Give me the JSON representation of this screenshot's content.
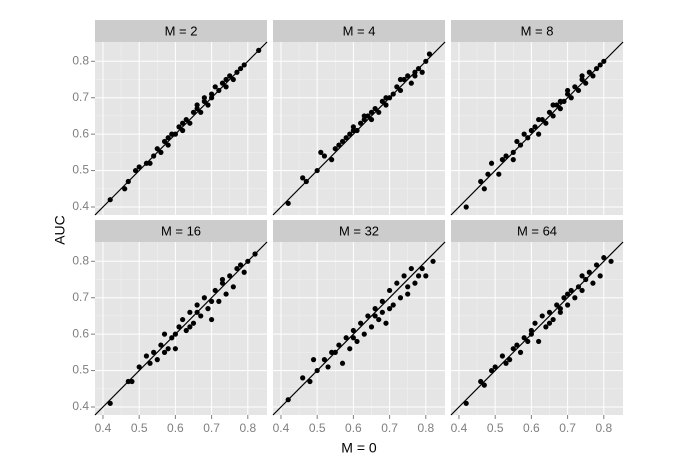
{
  "chart_data": {
    "type": "scatter",
    "xlabel": "M = 0",
    "ylabel": "AUC",
    "xlim": [
      0.378,
      0.853
    ],
    "ylim": [
      0.378,
      0.853
    ],
    "xticks": [
      0.4,
      0.5,
      0.6,
      0.7,
      0.8
    ],
    "yticks": [
      0.4,
      0.5,
      0.6,
      0.7,
      0.8
    ],
    "grid": true,
    "color": "#000000",
    "panels": [
      {
        "label": "M = 2",
        "x": [
          0.42,
          0.46,
          0.47,
          0.49,
          0.5,
          0.52,
          0.53,
          0.54,
          0.55,
          0.56,
          0.57,
          0.58,
          0.59,
          0.6,
          0.61,
          0.62,
          0.63,
          0.64,
          0.65,
          0.66,
          0.67,
          0.68,
          0.69,
          0.7,
          0.71,
          0.72,
          0.73,
          0.74,
          0.75,
          0.76,
          0.77,
          0.78,
          0.79,
          0.66,
          0.7,
          0.62,
          0.58,
          0.74,
          0.68,
          0.83
        ],
        "y": [
          0.42,
          0.45,
          0.47,
          0.5,
          0.51,
          0.52,
          0.52,
          0.54,
          0.56,
          0.55,
          0.58,
          0.57,
          0.6,
          0.6,
          0.62,
          0.61,
          0.64,
          0.63,
          0.66,
          0.67,
          0.66,
          0.69,
          0.68,
          0.71,
          0.73,
          0.72,
          0.74,
          0.73,
          0.76,
          0.75,
          0.77,
          0.78,
          0.79,
          0.68,
          0.7,
          0.63,
          0.59,
          0.75,
          0.7,
          0.83
        ]
      },
      {
        "label": "M = 4",
        "x": [
          0.46,
          0.47,
          0.5,
          0.51,
          0.52,
          0.54,
          0.55,
          0.56,
          0.57,
          0.58,
          0.59,
          0.6,
          0.61,
          0.62,
          0.63,
          0.64,
          0.65,
          0.66,
          0.67,
          0.68,
          0.69,
          0.7,
          0.71,
          0.72,
          0.73,
          0.74,
          0.75,
          0.76,
          0.77,
          0.78,
          0.79,
          0.8,
          0.81,
          0.65,
          0.69,
          0.6,
          0.73,
          0.77,
          0.63,
          0.42
        ],
        "y": [
          0.48,
          0.47,
          0.5,
          0.55,
          0.54,
          0.53,
          0.56,
          0.57,
          0.58,
          0.59,
          0.6,
          0.61,
          0.61,
          0.63,
          0.64,
          0.65,
          0.64,
          0.67,
          0.66,
          0.69,
          0.68,
          0.7,
          0.71,
          0.73,
          0.72,
          0.75,
          0.76,
          0.74,
          0.77,
          0.78,
          0.77,
          0.8,
          0.82,
          0.66,
          0.7,
          0.62,
          0.75,
          0.76,
          0.65,
          0.41
        ]
      },
      {
        "label": "M = 8",
        "x": [
          0.42,
          0.46,
          0.47,
          0.49,
          0.51,
          0.52,
          0.53,
          0.55,
          0.56,
          0.57,
          0.58,
          0.59,
          0.6,
          0.61,
          0.62,
          0.63,
          0.64,
          0.65,
          0.66,
          0.67,
          0.68,
          0.69,
          0.7,
          0.71,
          0.72,
          0.73,
          0.74,
          0.75,
          0.76,
          0.77,
          0.78,
          0.79,
          0.8,
          0.62,
          0.66,
          0.7,
          0.74,
          0.55,
          0.68,
          0.48
        ],
        "y": [
          0.4,
          0.47,
          0.45,
          0.52,
          0.49,
          0.53,
          0.54,
          0.55,
          0.58,
          0.57,
          0.6,
          0.59,
          0.61,
          0.62,
          0.6,
          0.64,
          0.63,
          0.66,
          0.65,
          0.68,
          0.67,
          0.69,
          0.71,
          0.7,
          0.73,
          0.72,
          0.75,
          0.74,
          0.77,
          0.76,
          0.78,
          0.79,
          0.8,
          0.64,
          0.68,
          0.72,
          0.76,
          0.53,
          0.69,
          0.49
        ]
      },
      {
        "label": "M = 16",
        "x": [
          0.42,
          0.47,
          0.48,
          0.5,
          0.52,
          0.53,
          0.54,
          0.55,
          0.56,
          0.57,
          0.58,
          0.59,
          0.6,
          0.61,
          0.62,
          0.63,
          0.64,
          0.65,
          0.66,
          0.67,
          0.68,
          0.69,
          0.7,
          0.71,
          0.72,
          0.73,
          0.74,
          0.75,
          0.76,
          0.77,
          0.78,
          0.79,
          0.8,
          0.82,
          0.6,
          0.66,
          0.7,
          0.73,
          0.57,
          0.64
        ],
        "y": [
          0.41,
          0.47,
          0.47,
          0.51,
          0.54,
          0.52,
          0.55,
          0.53,
          0.57,
          0.6,
          0.56,
          0.59,
          0.56,
          0.62,
          0.64,
          0.61,
          0.66,
          0.63,
          0.68,
          0.65,
          0.7,
          0.67,
          0.64,
          0.72,
          0.69,
          0.74,
          0.71,
          0.76,
          0.73,
          0.78,
          0.79,
          0.77,
          0.8,
          0.82,
          0.6,
          0.66,
          0.69,
          0.75,
          0.55,
          0.62
        ]
      },
      {
        "label": "M = 32",
        "x": [
          0.42,
          0.46,
          0.48,
          0.49,
          0.5,
          0.52,
          0.53,
          0.55,
          0.56,
          0.57,
          0.58,
          0.59,
          0.6,
          0.61,
          0.62,
          0.63,
          0.64,
          0.65,
          0.66,
          0.67,
          0.68,
          0.69,
          0.7,
          0.71,
          0.72,
          0.73,
          0.74,
          0.75,
          0.76,
          0.77,
          0.78,
          0.79,
          0.8,
          0.82,
          0.6,
          0.66,
          0.7,
          0.75,
          0.54,
          0.68
        ],
        "y": [
          0.42,
          0.48,
          0.47,
          0.53,
          0.5,
          0.53,
          0.51,
          0.55,
          0.57,
          0.52,
          0.59,
          0.56,
          0.61,
          0.58,
          0.63,
          0.6,
          0.65,
          0.62,
          0.67,
          0.64,
          0.69,
          0.63,
          0.72,
          0.68,
          0.74,
          0.7,
          0.76,
          0.71,
          0.78,
          0.74,
          0.76,
          0.78,
          0.76,
          0.8,
          0.59,
          0.65,
          0.67,
          0.73,
          0.55,
          0.66
        ]
      },
      {
        "label": "M = 64",
        "x": [
          0.42,
          0.46,
          0.47,
          0.49,
          0.5,
          0.52,
          0.53,
          0.54,
          0.55,
          0.57,
          0.58,
          0.59,
          0.6,
          0.61,
          0.62,
          0.63,
          0.64,
          0.65,
          0.66,
          0.67,
          0.68,
          0.69,
          0.7,
          0.71,
          0.72,
          0.73,
          0.74,
          0.75,
          0.76,
          0.77,
          0.78,
          0.79,
          0.8,
          0.82,
          0.6,
          0.65,
          0.7,
          0.74,
          0.56,
          0.68
        ],
        "y": [
          0.41,
          0.47,
          0.46,
          0.5,
          0.51,
          0.54,
          0.52,
          0.53,
          0.56,
          0.55,
          0.59,
          0.58,
          0.6,
          0.63,
          0.58,
          0.65,
          0.62,
          0.66,
          0.64,
          0.68,
          0.66,
          0.7,
          0.68,
          0.72,
          0.7,
          0.73,
          0.72,
          0.75,
          0.77,
          0.74,
          0.79,
          0.76,
          0.81,
          0.8,
          0.61,
          0.63,
          0.71,
          0.76,
          0.57,
          0.67
        ]
      }
    ]
  }
}
